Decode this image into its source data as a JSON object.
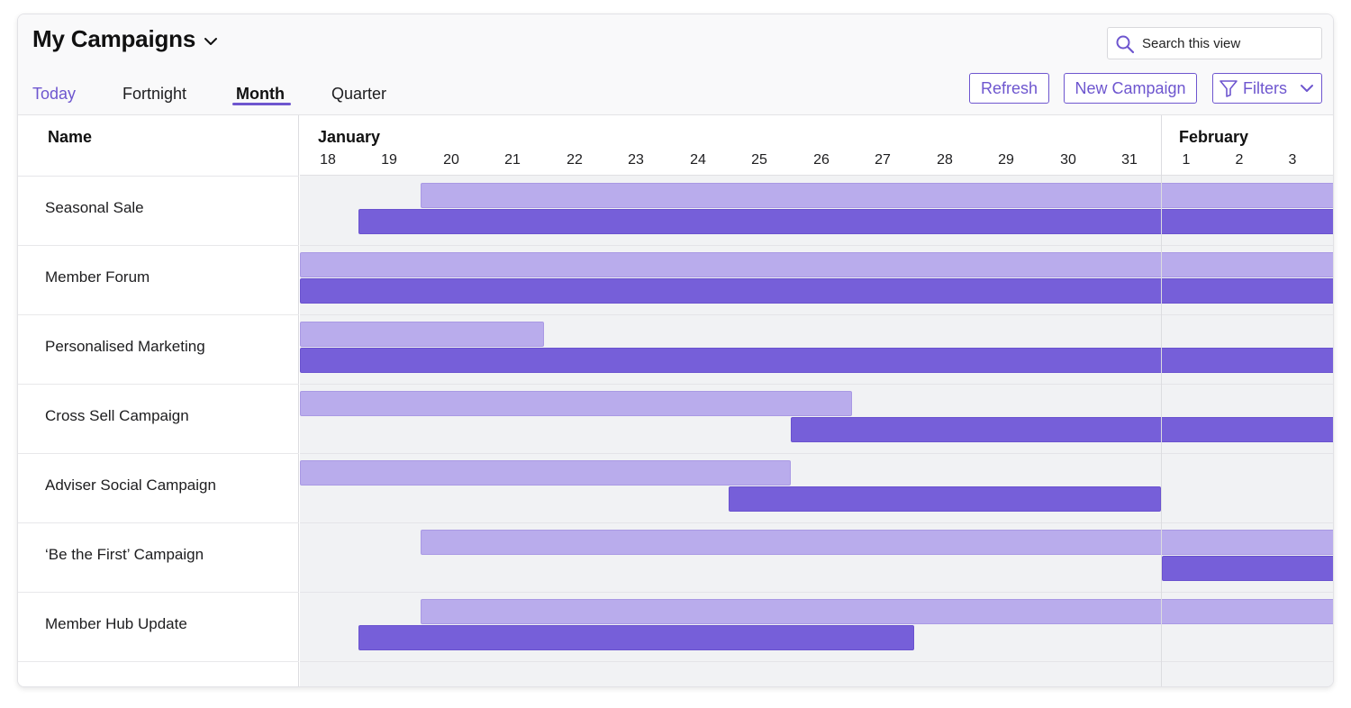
{
  "header": {
    "title": "My Campaigns",
    "search_placeholder": "Search this view"
  },
  "tabs": [
    {
      "label": "Today"
    },
    {
      "label": "Fortnight"
    },
    {
      "label": "Month"
    },
    {
      "label": "Quarter"
    }
  ],
  "active_tab": "Month",
  "toolbar": {
    "refresh_label": "Refresh",
    "new_campaign_label": "New Campaign",
    "filters_label": "Filters"
  },
  "table": {
    "name_header": "Name",
    "months": [
      "January",
      "February"
    ],
    "days": [
      "18",
      "19",
      "20",
      "21",
      "22",
      "23",
      "24",
      "25",
      "26",
      "27",
      "28",
      "29",
      "30",
      "31",
      "1",
      "2",
      "3"
    ]
  },
  "campaigns": [
    {
      "name": "Seasonal Sale",
      "planned": {
        "start": "Jan 20",
        "end": "Feb 3+"
      },
      "actual": {
        "start": "Jan 19",
        "end": "Feb 3+"
      }
    },
    {
      "name": "Member Forum",
      "planned": {
        "start": "Jan 18-",
        "end": "Feb 3+"
      },
      "actual": {
        "start": "Jan 18-",
        "end": "Feb 3+"
      }
    },
    {
      "name": "Personalised Marketing",
      "planned": {
        "start": "Jan 18-",
        "end": "Jan 21"
      },
      "actual": {
        "start": "Jan 18-",
        "end": "Feb 3+"
      }
    },
    {
      "name": "Cross Sell Campaign",
      "planned": {
        "start": "Jan 18-",
        "end": "Jan 26"
      },
      "actual": {
        "start": "Jan 26",
        "end": "Feb 3+"
      }
    },
    {
      "name": "Adviser Social Campaign",
      "planned": {
        "start": "Jan 18-",
        "end": "Jan 25"
      },
      "actual": {
        "start": "Jan 25",
        "end": "Jan 31"
      }
    },
    {
      "name": "‘Be the First’ Campaign",
      "planned": {
        "start": "Jan 20",
        "end": "Feb 3+"
      },
      "actual": {
        "start": "Feb 1",
        "end": "Feb 3+"
      }
    },
    {
      "name": "Member Hub Update",
      "planned": {
        "start": "Jan 20",
        "end": "Feb 3+"
      },
      "actual": {
        "start": "Jan 19",
        "end": "Jan 27"
      }
    }
  ],
  "colors": {
    "accent": "#6e56cf",
    "planned_bar": "#b9acec",
    "actual_bar": "#765fd9"
  }
}
